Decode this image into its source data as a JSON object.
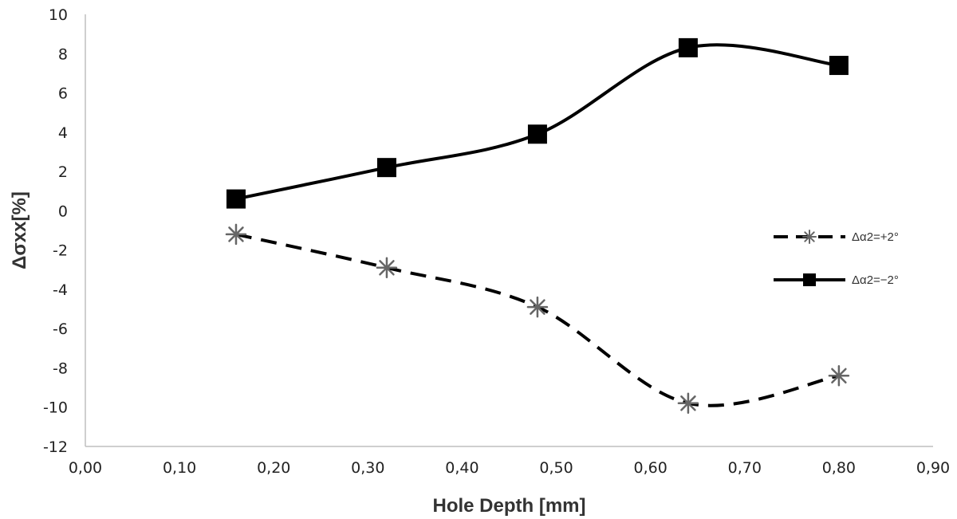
{
  "chart_data": {
    "type": "line",
    "xlabel": "Hole Depth [mm]",
    "ylabel": "Δσxx[%]",
    "xlim": [
      0,
      0.9
    ],
    "ylim": [
      -12,
      10
    ],
    "x_ticks": [
      "0,00",
      "0,10",
      "0,20",
      "0,30",
      "0,40",
      "0,50",
      "0,60",
      "0,70",
      "0,80",
      "0,90"
    ],
    "y_ticks": [
      "-12",
      "-10",
      "-8",
      "-6",
      "-4",
      "-2",
      "0",
      "2",
      "4",
      "6",
      "8",
      "10"
    ],
    "x": [
      0.16,
      0.32,
      0.48,
      0.64,
      0.8
    ],
    "series": [
      {
        "name": "Δα2=+2°",
        "values": [
          -1.2,
          -2.9,
          -4.9,
          -9.8,
          -8.4
        ],
        "style": "dashed",
        "marker": "asterisk",
        "color": "#000000",
        "marker_color": "#666666"
      },
      {
        "name": "Δα2=−2°",
        "values": [
          0.6,
          2.2,
          3.9,
          8.3,
          7.4
        ],
        "style": "solid",
        "marker": "square",
        "color": "#000000",
        "marker_color": "#000000"
      }
    ],
    "grid": false,
    "legend_position": "right"
  }
}
